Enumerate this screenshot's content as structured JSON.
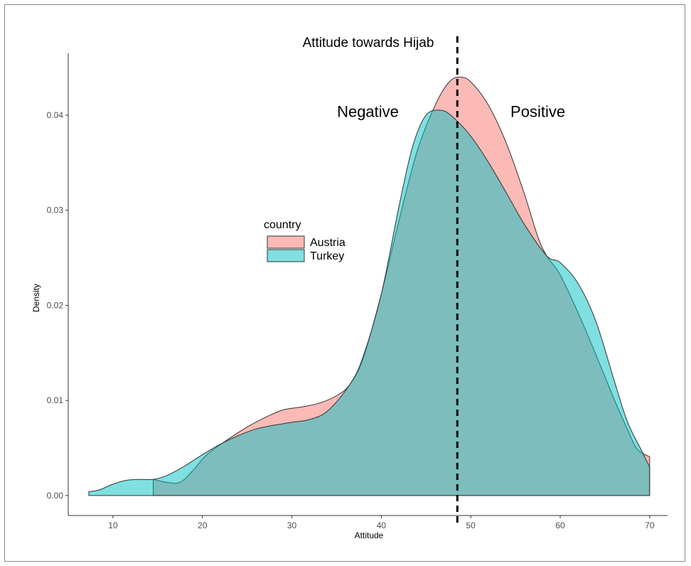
{
  "chart_data": {
    "type": "area",
    "title": "Attitude towards Hijab",
    "xlabel": "Attitude",
    "ylabel": "Density",
    "xlim": [
      5,
      72
    ],
    "ylim": [
      -0.0021,
      0.0465
    ],
    "x_ticks": [
      10,
      20,
      30,
      40,
      50,
      60,
      70
    ],
    "x_tick_labels": [
      "10",
      "20",
      "30",
      "40",
      "50",
      "60",
      "70"
    ],
    "y_ticks": [
      0.0,
      0.01,
      0.02,
      0.03,
      0.04
    ],
    "y_tick_labels": [
      "0.00",
      "0.01",
      "0.02",
      "0.03",
      "0.04"
    ],
    "grid": false,
    "legend": {
      "title": "country",
      "position": "center-left"
    },
    "reference_line": {
      "x": 48.5,
      "style": "dashed"
    },
    "annotations": [
      {
        "text": "Negative",
        "x": 38.5,
        "y": 0.0398
      },
      {
        "text": "Positive",
        "x": 57.5,
        "y": 0.0398
      }
    ],
    "series": [
      {
        "name": "Austria",
        "color": "#F8766D",
        "points": [
          [
            14.5,
            0.0017
          ],
          [
            16,
            0.0014
          ],
          [
            17.5,
            0.0014
          ],
          [
            19,
            0.0027
          ],
          [
            20.5,
            0.0043
          ],
          [
            23,
            0.006
          ],
          [
            25,
            0.0072
          ],
          [
            27,
            0.0082
          ],
          [
            29,
            0.009
          ],
          [
            31,
            0.0093
          ],
          [
            33,
            0.0097
          ],
          [
            35,
            0.0105
          ],
          [
            36.5,
            0.0117
          ],
          [
            38,
            0.0145
          ],
          [
            40,
            0.0212
          ],
          [
            42,
            0.029
          ],
          [
            44,
            0.0362
          ],
          [
            46,
            0.041
          ],
          [
            47.5,
            0.0434
          ],
          [
            48.7,
            0.044
          ],
          [
            50,
            0.0435
          ],
          [
            52,
            0.041
          ],
          [
            54,
            0.037
          ],
          [
            56,
            0.0317
          ],
          [
            57.5,
            0.0272
          ],
          [
            58.5,
            0.0252
          ],
          [
            60,
            0.0232
          ],
          [
            62,
            0.0192
          ],
          [
            64,
            0.0148
          ],
          [
            66,
            0.0102
          ],
          [
            67.5,
            0.007
          ],
          [
            68.5,
            0.005
          ],
          [
            69.5,
            0.0043
          ],
          [
            70,
            0.0041
          ]
        ]
      },
      {
        "name": "Turkey",
        "color": "#00BFC4",
        "points": [
          [
            7.3,
            0.0004
          ],
          [
            8.5,
            0.0006
          ],
          [
            10,
            0.0012
          ],
          [
            11.5,
            0.0016
          ],
          [
            13,
            0.0017
          ],
          [
            14.5,
            0.0017
          ],
          [
            16,
            0.0021
          ],
          [
            18,
            0.0031
          ],
          [
            20,
            0.0043
          ],
          [
            22,
            0.0054
          ],
          [
            24,
            0.0063
          ],
          [
            26,
            0.007
          ],
          [
            28,
            0.0074
          ],
          [
            30,
            0.0077
          ],
          [
            32,
            0.008
          ],
          [
            34,
            0.0089
          ],
          [
            36.5,
            0.0117
          ],
          [
            38,
            0.0147
          ],
          [
            40,
            0.0212
          ],
          [
            42,
            0.0305
          ],
          [
            43.5,
            0.0367
          ],
          [
            45,
            0.04
          ],
          [
            46.7,
            0.0405
          ],
          [
            48,
            0.0398
          ],
          [
            50,
            0.0378
          ],
          [
            52,
            0.035
          ],
          [
            54,
            0.0318
          ],
          [
            56,
            0.0285
          ],
          [
            58.5,
            0.0252
          ],
          [
            60,
            0.0245
          ],
          [
            62,
            0.0223
          ],
          [
            64,
            0.0183
          ],
          [
            66,
            0.0122
          ],
          [
            67.5,
            0.0078
          ],
          [
            69,
            0.0049
          ],
          [
            70,
            0.003
          ]
        ]
      }
    ]
  }
}
